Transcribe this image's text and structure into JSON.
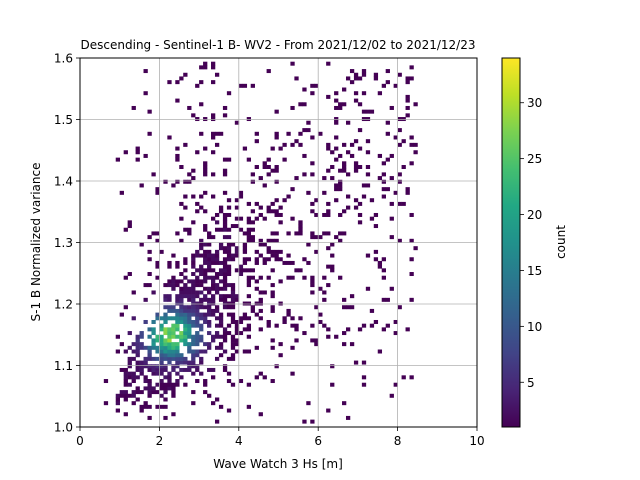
{
  "chart_data": {
    "type": "heatmap",
    "title": "Descending - Sentinel-1 B- WV2 - From 2021/12/02 to 2021/12/23",
    "xlabel": "Wave Watch 3 Hs [m]",
    "ylabel": "S-1 B Normalized variance",
    "xlim": [
      0,
      10
    ],
    "ylim": [
      1.0,
      1.6
    ],
    "xticks": [
      "0",
      "2",
      "4",
      "6",
      "8",
      "10"
    ],
    "yticks": [
      "1.0",
      "1.1",
      "1.2",
      "1.3",
      "1.4",
      "1.5",
      "1.6"
    ],
    "grid": true,
    "colorbar": {
      "label": "count",
      "range": [
        1,
        34
      ],
      "ticks": [
        "5",
        "10",
        "15",
        "20",
        "25",
        "30"
      ],
      "colormap": "viridis"
    },
    "bin_size": {
      "x": 0.1,
      "y": 0.006
    },
    "density_peak": {
      "x": 2.3,
      "y": 1.15,
      "count": 33
    },
    "density_ridge": [
      {
        "x": 1.2,
        "y": 1.08
      },
      {
        "x": 2.0,
        "y": 1.12
      },
      {
        "x": 2.3,
        "y": 1.15
      },
      {
        "x": 3.0,
        "y": 1.2
      },
      {
        "x": 4.0,
        "y": 1.26
      },
      {
        "x": 5.0,
        "y": 1.31
      }
    ],
    "sparse_points_range": {
      "x": [
        0.5,
        8.3
      ],
      "y": [
        1.05,
        1.59
      ]
    }
  }
}
